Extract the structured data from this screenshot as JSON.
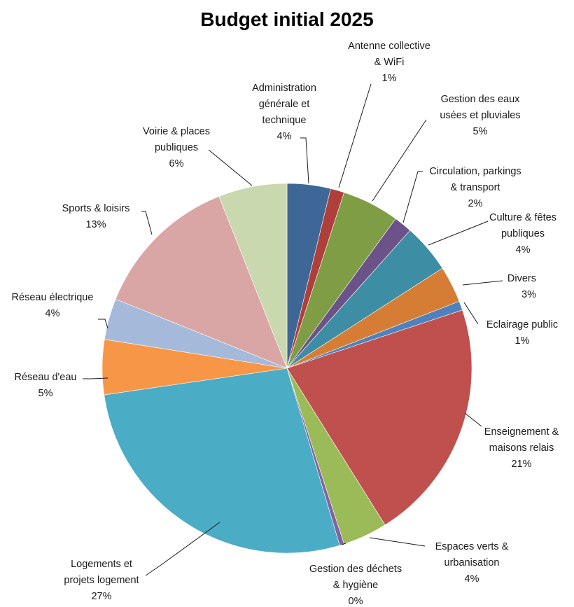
{
  "chart_data": {
    "type": "pie",
    "title": "Budget initial 2025",
    "start": "12 o'clock, clockwise",
    "slices": [
      {
        "label": [
          "Administration",
          "générale et",
          "technique"
        ],
        "pct_label": "4%",
        "value": 3.8,
        "color": "#3E6797"
      },
      {
        "label": [
          "Antenne collective",
          "& WiFi"
        ],
        "pct_label": "1%",
        "value": 1.2,
        "color": "#AF3F3B"
      },
      {
        "label": [
          "Gestion des eaux",
          "usées et pluviales"
        ],
        "pct_label": "5%",
        "value": 5.0,
        "color": "#7E9D45"
      },
      {
        "label": [
          "Circulation, parkings",
          "& transport"
        ],
        "pct_label": "2%",
        "value": 1.6,
        "color": "#6B5288"
      },
      {
        "label": [
          "Culture & fêtes",
          "publiques"
        ],
        "pct_label": "4%",
        "value": 4.3,
        "color": "#3D8DA4"
      },
      {
        "label": [
          "Divers"
        ],
        "pct_label": "3%",
        "value": 3.2,
        "color": "#D67D35"
      },
      {
        "label": [
          "Eclairage public"
        ],
        "pct_label": "1%",
        "value": 0.8,
        "color": "#4F81BD"
      },
      {
        "label": [
          "Enseignement &",
          "maisons relais"
        ],
        "pct_label": "21%",
        "value": 21.2,
        "color": "#C0504D"
      },
      {
        "label": [
          "Espaces verts &",
          "urbanisation"
        ],
        "pct_label": "4%",
        "value": 3.9,
        "color": "#9BBB59"
      },
      {
        "label": [
          "Gestion des déchets",
          "& hygiène"
        ],
        "pct_label": "0%",
        "value": 0.4,
        "color": "#8064A2"
      },
      {
        "label": [
          "Logements et",
          "projets logement"
        ],
        "pct_label": "27%",
        "value": 27.3,
        "color": "#4BACC6"
      },
      {
        "label": [
          "Réseau d'eau"
        ],
        "pct_label": "5%",
        "value": 4.8,
        "color": "#F79646"
      },
      {
        "label": [
          "Réseau électrique"
        ],
        "pct_label": "4%",
        "value": 3.6,
        "color": "#A5B9DB"
      },
      {
        "label": [
          "Sports & loisirs"
        ],
        "pct_label": "13%",
        "value": 12.9,
        "color": "#D9A6A5"
      },
      {
        "label": [
          "Voirie & places",
          "publiques"
        ],
        "pct_label": "6%",
        "value": 6.0,
        "color": "#C9D8AE"
      }
    ]
  }
}
